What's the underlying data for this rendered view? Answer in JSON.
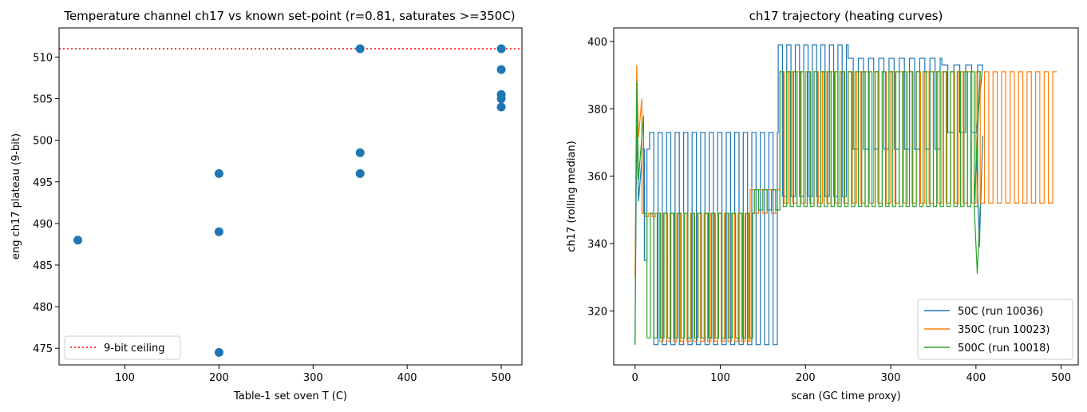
{
  "chart_data": [
    {
      "type": "scatter",
      "title": "Temperature channel ch17 vs known set-point (r=0.81, saturates >=350C)",
      "xlabel": "Table-1 set oven T (C)",
      "ylabel": "eng ch17 plateau (9-bit)",
      "xlim": [
        30,
        522
      ],
      "ylim": [
        473.0,
        513.5
      ],
      "xticks": [
        100,
        200,
        300,
        400,
        500
      ],
      "yticks": [
        475,
        480,
        485,
        490,
        495,
        500,
        505,
        510
      ],
      "points": [
        {
          "x": 50,
          "y": 488.0
        },
        {
          "x": 200,
          "y": 474.5
        },
        {
          "x": 200,
          "y": 489.0
        },
        {
          "x": 200,
          "y": 496.0
        },
        {
          "x": 350,
          "y": 496.0
        },
        {
          "x": 350,
          "y": 498.5
        },
        {
          "x": 350,
          "y": 511.0
        },
        {
          "x": 500,
          "y": 504.0
        },
        {
          "x": 500,
          "y": 505.0
        },
        {
          "x": 500,
          "y": 505.5
        },
        {
          "x": 500,
          "y": 508.5
        },
        {
          "x": 500,
          "y": 511.0
        }
      ],
      "point_color": "#1f77b4",
      "hline": {
        "y": 511,
        "label": "9-bit ceiling",
        "color": "#ff0000",
        "style": "dotted"
      },
      "legend": {
        "placement": "lower-left",
        "entries": [
          "9-bit ceiling"
        ]
      },
      "grid": false
    },
    {
      "type": "line",
      "title": "ch17 trajectory (heating curves)",
      "xlabel": "scan (GC time proxy)",
      "ylabel": "ch17 (rolling median)",
      "xlim": [
        -25,
        520
      ],
      "ylim": [
        304,
        404
      ],
      "xticks": [
        0,
        100,
        200,
        300,
        400,
        500
      ],
      "yticks": [
        320,
        340,
        360,
        380,
        400
      ],
      "legend": {
        "placement": "lower-right"
      },
      "grid": false,
      "series": [
        {
          "name": "50C (run 10036)",
          "color": "#1f77b4",
          "segments": [
            {
              "x0": 0,
              "x1": 8,
              "hi": 375,
              "lo": 310,
              "period": 1,
              "style": "spike"
            },
            {
              "x0": 8,
              "x1": 17,
              "hi": 368,
              "lo": 335,
              "period": 3,
              "style": "flat"
            },
            {
              "x0": 17,
              "x1": 168,
              "hi": 373,
              "lo": 310,
              "period": 5,
              "style": "osc"
            },
            {
              "x0": 168,
              "x1": 250,
              "hi": 399,
              "lo": 354,
              "period": 5,
              "style": "osc"
            },
            {
              "x0": 250,
              "x1": 360,
              "hi": 395,
              "lo": 368,
              "period": 6,
              "style": "osc"
            },
            {
              "x0": 360,
              "x1": 408,
              "hi": 393,
              "lo": 373,
              "period": 7,
              "style": "osc"
            },
            {
              "x0": 400,
              "x1": 408,
              "hi": 372,
              "lo": 339,
              "period": 2,
              "style": "drop"
            }
          ]
        },
        {
          "name": "350C (run 10023)",
          "color": "#ff7f0e",
          "segments": [
            {
              "x0": 0,
              "x1": 8,
              "hi": 393,
              "lo": 330,
              "period": 1,
              "style": "spike"
            },
            {
              "x0": 8,
              "x1": 25,
              "hi": 349,
              "lo": 348,
              "period": 4,
              "style": "flat"
            },
            {
              "x0": 25,
              "x1": 135,
              "hi": 349,
              "lo": 311,
              "period": 4,
              "style": "osc"
            },
            {
              "x0": 135,
              "x1": 170,
              "hi": 356,
              "lo": 349,
              "period": 5,
              "style": "flat"
            },
            {
              "x0": 170,
              "x1": 495,
              "hi": 391,
              "lo": 352,
              "period": 5,
              "style": "osc"
            }
          ]
        },
        {
          "name": "500C (run 10018)",
          "color": "#2ca02c",
          "segments": [
            {
              "x0": 0,
              "x1": 10,
              "hi": 388,
              "lo": 310,
              "period": 1,
              "style": "spike"
            },
            {
              "x0": 10,
              "x1": 140,
              "hi": 349,
              "lo": 312,
              "period": 4,
              "style": "osc"
            },
            {
              "x0": 140,
              "x1": 170,
              "hi": 356,
              "lo": 350,
              "period": 5,
              "style": "flat"
            },
            {
              "x0": 170,
              "x1": 405,
              "hi": 391,
              "lo": 351,
              "period": 4,
              "style": "osc"
            },
            {
              "x0": 398,
              "x1": 405,
              "hi": 351,
              "lo": 331,
              "period": 2,
              "style": "drop"
            }
          ]
        }
      ]
    }
  ]
}
